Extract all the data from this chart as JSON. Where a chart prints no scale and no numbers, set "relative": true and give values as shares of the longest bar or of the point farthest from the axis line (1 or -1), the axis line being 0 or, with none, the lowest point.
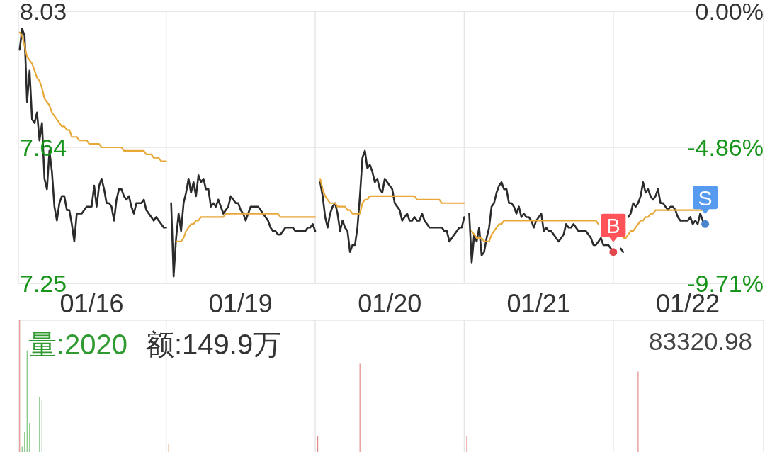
{
  "chart_data": [
    {
      "type": "line",
      "categories": [
        null,
        null,
        null,
        null,
        null,
        null,
        null,
        null,
        null,
        null,
        null,
        null,
        null,
        null,
        null,
        null,
        null,
        null,
        null,
        null,
        null,
        null,
        null,
        null,
        null,
        null,
        null,
        null,
        null,
        "01/16",
        null,
        null,
        null,
        null,
        null,
        null,
        null,
        null,
        null,
        null,
        null,
        null,
        null,
        null,
        null,
        null,
        null,
        null,
        null,
        null,
        null,
        null,
        null,
        null,
        null,
        null,
        null,
        null,
        null,
        null,
        null,
        null,
        null,
        null,
        null,
        null,
        null,
        null,
        null,
        null,
        null,
        null,
        null,
        null,
        null,
        null,
        null,
        null,
        null,
        null,
        null,
        null,
        null,
        null,
        null,
        null,
        null,
        null,
        null,
        "01/19",
        null,
        null,
        null,
        null,
        null,
        null,
        null,
        null,
        null,
        null,
        null,
        null,
        null,
        null,
        null,
        null,
        null,
        null,
        null,
        null,
        null,
        null,
        null,
        null,
        null,
        null,
        null,
        null,
        null,
        null,
        null,
        null,
        null,
        null,
        null,
        null,
        null,
        null,
        null,
        null,
        null,
        null,
        null,
        null,
        null,
        null,
        null,
        null,
        null,
        null,
        null,
        null,
        null,
        null,
        null,
        null,
        null,
        null,
        null,
        "01/20",
        null,
        null,
        null,
        null,
        null,
        null,
        null,
        null,
        null,
        null,
        null,
        null,
        null,
        null,
        null,
        null,
        null,
        null,
        null,
        null,
        null,
        null,
        null,
        null,
        null,
        null,
        null,
        null,
        null,
        null,
        null,
        null,
        null,
        null,
        null,
        null,
        null,
        null,
        null,
        null,
        null,
        null,
        null,
        null,
        null,
        null,
        null,
        null,
        null,
        null,
        null,
        null,
        null,
        null,
        null,
        null,
        null,
        null,
        null,
        "01/21",
        null,
        null,
        null,
        null,
        null,
        null,
        null,
        null,
        null,
        null,
        null,
        null,
        null,
        null,
        null,
        null,
        null,
        null,
        null,
        null,
        null,
        null,
        null,
        null,
        null,
        null,
        null,
        null,
        null,
        null,
        null,
        null,
        null,
        null,
        null,
        null,
        null,
        null,
        null,
        null,
        null,
        null,
        null,
        null,
        null,
        null,
        null,
        null,
        null,
        null,
        null,
        null,
        null,
        null,
        null,
        null,
        null,
        null,
        null,
        "01/22",
        null,
        null,
        null,
        null,
        null,
        null,
        null,
        null,
        null,
        null,
        null,
        null,
        null,
        null,
        null,
        null,
        null,
        null,
        null,
        null,
        null,
        null,
        null,
        null,
        null,
        null,
        null,
        null,
        null,
        null
      ],
      "series": [
        {
          "color": "#2b2b2b",
          "values": [
            7.92,
            7.98,
            7.96,
            7.77,
            7.86,
            7.72,
            7.71,
            7.74,
            7.66,
            7.71,
            7.55,
            7.52,
            7.63,
            7.57,
            7.47,
            7.43,
            7.48,
            7.5,
            7.5,
            7.46,
            7.46,
            7.42,
            7.37,
            7.45,
            7.45,
            7.45,
            7.46,
            7.47,
            7.47,
            7.47,
            7.53,
            7.47,
            7.53,
            7.55,
            7.52,
            7.48,
            7.48,
            7.47,
            7.43,
            7.49,
            7.52,
            7.52,
            7.5,
            7.49,
            7.5,
            7.47,
            7.45,
            7.48,
            7.48,
            7.48,
            7.49,
            7.46,
            7.45,
            7.44,
            7.43,
            7.44,
            7.43,
            7.42,
            7.41,
            7.41,
            null,
            7.48,
            7.27,
            7.38,
            7.45,
            7.4,
            7.48,
            7.51,
            7.55,
            7.51,
            7.54,
            7.5,
            7.56,
            7.54,
            7.55,
            7.52,
            7.52,
            7.47,
            7.48,
            7.47,
            7.49,
            7.47,
            7.45,
            7.46,
            7.47,
            7.5,
            7.49,
            7.48,
            7.48,
            7.46,
            7.45,
            7.43,
            7.45,
            7.47,
            7.47,
            7.47,
            7.47,
            7.46,
            7.45,
            7.44,
            7.43,
            7.41,
            7.4,
            7.4,
            7.39,
            7.39,
            7.4,
            7.41,
            7.41,
            7.41,
            7.41,
            7.4,
            7.4,
            7.4,
            7.4,
            7.4,
            7.41,
            7.41,
            7.42,
            7.4,
            null,
            7.54,
            7.5,
            7.44,
            7.41,
            7.45,
            7.47,
            7.48,
            7.45,
            7.4,
            7.43,
            7.41,
            7.4,
            7.34,
            7.36,
            7.36,
            7.41,
            7.5,
            7.61,
            7.63,
            7.58,
            7.59,
            7.57,
            7.54,
            7.55,
            7.52,
            7.51,
            7.55,
            7.54,
            7.53,
            7.52,
            7.48,
            7.47,
            7.46,
            7.43,
            7.44,
            7.45,
            7.43,
            7.43,
            7.44,
            7.43,
            7.43,
            7.45,
            7.43,
            7.42,
            7.41,
            7.41,
            7.41,
            7.41,
            7.41,
            7.41,
            7.4,
            7.4,
            7.37,
            7.38,
            7.39,
            7.4,
            7.41,
            7.41,
            7.44,
            null,
            7.45,
            7.31,
            7.39,
            7.37,
            7.41,
            7.33,
            7.34,
            7.38,
            7.41,
            7.47,
            7.48,
            7.51,
            7.53,
            7.54,
            7.52,
            7.52,
            7.48,
            7.48,
            7.47,
            7.45,
            7.47,
            7.44,
            7.45,
            7.44,
            7.44,
            7.43,
            7.41,
            7.43,
            7.44,
            7.45,
            7.4,
            7.41,
            7.4,
            7.4,
            7.39,
            7.38,
            7.37,
            7.38,
            7.39,
            7.42,
            7.41,
            7.41,
            7.42,
            7.41,
            7.4,
            7.4,
            7.4,
            7.4,
            7.39,
            7.38,
            7.36,
            7.36,
            7.37,
            7.38,
            7.36,
            7.36,
            7.36,
            7.35,
            7.34,
            null,
            null,
            7.35,
            7.34,
            null,
            7.44,
            7.45,
            7.48,
            7.47,
            7.48,
            7.5,
            7.54,
            7.51,
            7.52,
            7.5,
            7.49,
            7.5,
            7.52,
            7.48,
            7.48,
            7.47,
            7.46,
            7.47,
            7.47,
            7.46,
            7.44,
            7.43,
            7.43,
            7.43,
            7.43,
            7.44,
            7.42,
            7.43,
            7.42,
            7.45,
            7.43,
            7.42,
            null,
            null,
            null,
            null,
            null,
            null,
            null,
            null,
            null,
            null,
            null,
            null,
            null,
            null,
            null,
            null,
            null,
            null,
            null,
            null,
            null,
            null,
            null
          ]
        },
        {
          "color": "#e8a838",
          "values": [
            7.97,
            7.96,
            7.93,
            7.9,
            7.89,
            7.88,
            7.86,
            7.84,
            7.83,
            7.81,
            7.78,
            7.77,
            7.76,
            7.74,
            7.73,
            7.72,
            7.71,
            7.7,
            7.7,
            7.69,
            7.69,
            7.67,
            7.67,
            7.67,
            7.66,
            7.66,
            7.66,
            7.66,
            7.65,
            7.65,
            7.65,
            7.65,
            7.65,
            7.64,
            7.64,
            7.64,
            7.64,
            7.64,
            7.64,
            7.64,
            7.64,
            7.64,
            7.63,
            7.63,
            7.63,
            7.63,
            7.63,
            7.63,
            7.63,
            7.63,
            7.63,
            7.62,
            7.62,
            7.62,
            7.61,
            7.61,
            7.61,
            7.6,
            7.6,
            7.6,
            null,
            null,
            null,
            7.37,
            7.37,
            7.37,
            7.38,
            7.4,
            7.41,
            7.42,
            7.42,
            7.43,
            7.43,
            7.44,
            7.44,
            7.44,
            7.44,
            7.44,
            7.44,
            7.44,
            7.44,
            7.44,
            7.44,
            7.45,
            7.45,
            7.45,
            7.45,
            7.45,
            7.45,
            7.45,
            7.45,
            7.45,
            7.45,
            7.45,
            7.45,
            7.45,
            7.45,
            7.45,
            7.45,
            7.45,
            7.45,
            7.45,
            7.45,
            7.45,
            7.45,
            7.44,
            7.44,
            7.44,
            7.44,
            7.44,
            7.44,
            7.44,
            7.44,
            7.44,
            7.44,
            7.44,
            7.44,
            7.44,
            7.44,
            7.44,
            null,
            7.55,
            7.52,
            7.5,
            7.49,
            7.48,
            7.48,
            7.48,
            7.47,
            7.47,
            7.47,
            7.47,
            7.46,
            7.46,
            7.45,
            7.45,
            7.45,
            7.45,
            7.48,
            7.49,
            7.49,
            7.5,
            7.5,
            7.5,
            7.5,
            7.5,
            7.5,
            7.5,
            7.5,
            7.5,
            7.5,
            7.5,
            7.5,
            7.5,
            7.5,
            7.5,
            7.5,
            7.5,
            7.5,
            7.5,
            7.49,
            7.49,
            7.49,
            7.49,
            7.49,
            7.49,
            7.49,
            7.49,
            7.49,
            7.49,
            7.48,
            7.48,
            7.48,
            7.48,
            7.48,
            7.48,
            7.48,
            7.48,
            7.48,
            7.48,
            null,
            null,
            7.4,
            7.39,
            7.38,
            7.38,
            7.38,
            7.37,
            7.37,
            7.37,
            7.39,
            7.4,
            7.41,
            7.42,
            7.42,
            7.43,
            7.43,
            7.43,
            7.43,
            7.43,
            7.43,
            7.43,
            7.43,
            7.43,
            7.43,
            7.43,
            7.43,
            7.43,
            7.43,
            7.43,
            7.43,
            7.43,
            7.43,
            7.43,
            7.43,
            7.43,
            7.43,
            7.43,
            7.43,
            7.43,
            7.43,
            7.43,
            7.43,
            7.43,
            7.43,
            7.43,
            7.43,
            7.43,
            7.43,
            7.43,
            7.43,
            7.43,
            7.43,
            7.42,
            null,
            null,
            null,
            null,
            null,
            null,
            null,
            null,
            null,
            7.38,
            7.38,
            7.39,
            7.4,
            7.4,
            7.41,
            7.42,
            7.43,
            7.43,
            7.44,
            7.44,
            7.45,
            7.45,
            7.46,
            7.46,
            7.46,
            7.46,
            7.46,
            7.46,
            7.46,
            7.46,
            7.46,
            7.46,
            7.46,
            7.46,
            7.46,
            7.46,
            7.46,
            7.46,
            7.46,
            7.46,
            7.46,
            7.46,
            7.46,
            null,
            null,
            null,
            null,
            null,
            null,
            null,
            null,
            null,
            null,
            null,
            null,
            null,
            null,
            null,
            null,
            null,
            null,
            null,
            null,
            null,
            null,
            null
          ]
        },
        {
          "type": "scatter",
          "name": "B",
          "color": "#e0464c",
          "values": [
            null,
            null,
            null,
            null,
            null,
            null,
            null,
            null,
            null,
            null,
            null,
            null,
            null,
            null,
            null,
            null,
            null,
            null,
            null,
            null,
            null,
            null,
            null,
            null,
            null,
            null,
            null,
            null,
            null,
            null,
            null,
            null,
            null,
            null,
            null,
            null,
            null,
            null,
            null,
            null,
            null,
            null,
            null,
            null,
            null,
            null,
            null,
            null,
            null,
            null,
            null,
            null,
            null,
            null,
            null,
            null,
            null,
            null,
            null,
            null,
            null,
            null,
            null,
            null,
            null,
            null,
            null,
            null,
            null,
            null,
            null,
            null,
            null,
            null,
            null,
            null,
            null,
            null,
            null,
            null,
            null,
            null,
            null,
            null,
            null,
            null,
            null,
            null,
            null,
            null,
            null,
            null,
            null,
            null,
            null,
            null,
            null,
            null,
            null,
            null,
            null,
            null,
            null,
            null,
            null,
            null,
            null,
            null,
            null,
            null,
            null,
            null,
            null,
            null,
            null,
            null,
            null,
            null,
            null,
            null,
            null,
            null,
            null,
            null,
            null,
            null,
            null,
            null,
            null,
            null,
            null,
            null,
            null,
            null,
            null,
            null,
            null,
            null,
            null,
            null,
            null,
            null,
            null,
            null,
            null,
            null,
            null,
            null,
            null,
            null,
            null,
            null,
            null,
            null,
            null,
            null,
            null,
            null,
            null,
            null,
            null,
            null,
            null,
            null,
            null,
            null,
            null,
            null,
            null,
            null,
            null,
            null,
            null,
            null,
            null,
            null,
            null,
            null,
            null,
            null,
            null,
            null,
            null,
            null,
            null,
            null,
            null,
            null,
            null,
            null,
            null,
            null,
            null,
            null,
            null,
            null,
            null,
            null,
            null,
            null,
            null,
            null,
            null,
            null,
            null,
            null,
            null,
            null,
            null,
            null,
            null,
            null,
            null,
            null,
            null,
            null,
            null,
            null,
            null,
            null,
            null,
            null,
            null,
            null,
            null,
            null,
            null,
            null,
            null,
            null,
            null,
            null,
            null,
            null,
            null,
            null,
            null,
            null,
            null,
            7.34,
            null,
            null,
            null,
            null,
            null,
            null,
            null,
            null,
            null,
            null,
            null,
            null,
            null,
            null,
            null,
            null,
            null,
            null,
            null,
            null,
            null,
            null,
            null,
            null,
            null,
            null,
            null,
            null,
            null,
            null,
            null,
            null,
            null,
            null,
            null,
            null,
            null,
            null,
            null,
            null,
            null,
            null,
            null,
            null,
            null,
            null,
            null,
            null,
            null,
            null,
            null,
            null,
            null,
            null,
            null,
            null,
            null,
            null,
            null,
            null
          ]
        },
        {
          "type": "scatter",
          "name": "S",
          "color": "#4a84cc",
          "values": [
            null,
            null,
            null,
            null,
            null,
            null,
            null,
            null,
            null,
            null,
            null,
            null,
            null,
            null,
            null,
            null,
            null,
            null,
            null,
            null,
            null,
            null,
            null,
            null,
            null,
            null,
            null,
            null,
            null,
            null,
            null,
            null,
            null,
            null,
            null,
            null,
            null,
            null,
            null,
            null,
            null,
            null,
            null,
            null,
            null,
            null,
            null,
            null,
            null,
            null,
            null,
            null,
            null,
            null,
            null,
            null,
            null,
            null,
            null,
            null,
            null,
            null,
            null,
            null,
            null,
            null,
            null,
            null,
            null,
            null,
            null,
            null,
            null,
            null,
            null,
            null,
            null,
            null,
            null,
            null,
            null,
            null,
            null,
            null,
            null,
            null,
            null,
            null,
            null,
            null,
            null,
            null,
            null,
            null,
            null,
            null,
            null,
            null,
            null,
            null,
            null,
            null,
            null,
            null,
            null,
            null,
            null,
            null,
            null,
            null,
            null,
            null,
            null,
            null,
            null,
            null,
            null,
            null,
            null,
            null,
            null,
            null,
            null,
            null,
            null,
            null,
            null,
            null,
            null,
            null,
            null,
            null,
            null,
            null,
            null,
            null,
            null,
            null,
            null,
            null,
            null,
            null,
            null,
            null,
            null,
            null,
            null,
            null,
            null,
            null,
            null,
            null,
            null,
            null,
            null,
            null,
            null,
            null,
            null,
            null,
            null,
            null,
            null,
            null,
            null,
            null,
            null,
            null,
            null,
            null,
            null,
            null,
            null,
            null,
            null,
            null,
            null,
            null,
            null,
            null,
            null,
            null,
            null,
            null,
            null,
            null,
            null,
            null,
            null,
            null,
            null,
            null,
            null,
            null,
            null,
            null,
            null,
            null,
            null,
            null,
            null,
            null,
            null,
            null,
            null,
            null,
            null,
            null,
            null,
            null,
            null,
            null,
            null,
            null,
            null,
            null,
            null,
            null,
            null,
            null,
            null,
            null,
            null,
            null,
            null,
            null,
            null,
            null,
            null,
            null,
            null,
            null,
            null,
            null,
            null,
            null,
            null,
            null,
            null,
            null,
            null,
            null,
            null,
            null,
            null,
            null,
            null,
            null,
            null,
            null,
            null,
            null,
            null,
            null,
            null,
            null,
            null,
            null,
            null,
            null,
            null,
            null,
            null,
            null,
            null,
            null,
            null,
            null,
            null,
            null,
            null,
            null,
            null,
            null,
            null,
            null,
            7.42,
            null,
            null,
            null,
            null,
            null,
            null,
            null,
            null,
            null,
            null,
            null,
            null,
            null,
            null,
            null,
            null,
            null,
            null,
            null,
            null,
            null,
            null,
            null
          ]
        }
      ],
      "ylim": [
        7.25,
        8.03
      ],
      "yticks": [
        7.25,
        7.64,
        8.03
      ],
      "y2lim": [
        -9.71,
        0
      ],
      "y2ticks": [
        {
          "value": -9.71,
          "label": "-9.71%"
        },
        {
          "value": -4.86,
          "label": "-4.86%"
        },
        {
          "value": 0,
          "label": "0.00%"
        }
      ],
      "grid": true
    },
    {
      "type": "bar",
      "relative": true,
      "categories": [
        null,
        null,
        null,
        null,
        null,
        null,
        null,
        null,
        null,
        null,
        null,
        null,
        null,
        null,
        null,
        null,
        null,
        null,
        null,
        null,
        null,
        null,
        null,
        null,
        null,
        null,
        null,
        null,
        null,
        null,
        null,
        null,
        null,
        null,
        null,
        null,
        null,
        null,
        null,
        null,
        null,
        null,
        null,
        null,
        null,
        null,
        null,
        null,
        null,
        null,
        null,
        null,
        null,
        null,
        null,
        null,
        null,
        null,
        null,
        null,
        null,
        null,
        null,
        null,
        null,
        null,
        null,
        null,
        null,
        null,
        null,
        null,
        null,
        null,
        null,
        null,
        null,
        null,
        null,
        null,
        null,
        null,
        null,
        null,
        null,
        null,
        null,
        null,
        null,
        null,
        null,
        null,
        null,
        null,
        null,
        null,
        null,
        null,
        null,
        null,
        null,
        null,
        null,
        null,
        null,
        null,
        null,
        null,
        null,
        null,
        null,
        null,
        null,
        null,
        null,
        null,
        null,
        null,
        null,
        null,
        null,
        null,
        null,
        null,
        null,
        null,
        null,
        null,
        null,
        null,
        null,
        null,
        null,
        null,
        null,
        null,
        null,
        null,
        null,
        null,
        null,
        null,
        null,
        null,
        null,
        null,
        null,
        null,
        null,
        null,
        null,
        null,
        null,
        null,
        null,
        null,
        null,
        null,
        null,
        null,
        null,
        null,
        null,
        null,
        null,
        null,
        null,
        null,
        null,
        null,
        null,
        null,
        null,
        null,
        null,
        null,
        null,
        null,
        null,
        null,
        null,
        null,
        null,
        null,
        null,
        null,
        null,
        null,
        null,
        null,
        null,
        null,
        null,
        null,
        null,
        null,
        null,
        null,
        null,
        null,
        null,
        null,
        null,
        null,
        null,
        null,
        null,
        null,
        null,
        null,
        null,
        null,
        null,
        null,
        null,
        null,
        null,
        null,
        null,
        null,
        null,
        null,
        null,
        null,
        null,
        null,
        null,
        null,
        null,
        null,
        null,
        null,
        null,
        null,
        null,
        null,
        null,
        null,
        null,
        null,
        null,
        null,
        null,
        null,
        null,
        null,
        null,
        null,
        null,
        null,
        null,
        null,
        null,
        null,
        null,
        null,
        null,
        null,
        null,
        null,
        null,
        null,
        null,
        null,
        null,
        null,
        null,
        null,
        null,
        null,
        null,
        null,
        null,
        null,
        null,
        null,
        null,
        null,
        null,
        null,
        null,
        null,
        null,
        null,
        null,
        null,
        null,
        null,
        null,
        null,
        null,
        null,
        null,
        null,
        null,
        null,
        null,
        null,
        null,
        null
      ],
      "values": [
        1,
        0.04,
        0.15,
        0.77,
        0.22,
        null,
        null,
        null,
        0.42,
        0.4,
        null,
        null,
        null,
        null,
        null,
        null,
        null,
        null,
        null,
        null,
        null,
        null,
        null,
        null,
        null,
        null,
        null,
        null,
        null,
        null,
        null,
        null,
        null,
        null,
        null,
        null,
        null,
        null,
        null,
        null,
        null,
        null,
        null,
        null,
        null,
        null,
        null,
        null,
        null,
        null,
        null,
        null,
        null,
        null,
        null,
        null,
        null,
        null,
        null,
        null,
        0.06,
        null,
        null,
        null,
        null,
        null,
        null,
        null,
        null,
        null,
        null,
        null,
        null,
        null,
        null,
        null,
        null,
        null,
        null,
        null,
        null,
        null,
        null,
        null,
        null,
        null,
        null,
        null,
        null,
        null,
        null,
        null,
        null,
        null,
        null,
        null,
        null,
        null,
        null,
        null,
        null,
        null,
        null,
        null,
        null,
        null,
        null,
        null,
        null,
        null,
        null,
        null,
        null,
        null,
        null,
        null,
        null,
        null,
        null,
        null,
        0.12,
        null,
        null,
        null,
        null,
        null,
        null,
        null,
        null,
        null,
        null,
        null,
        null,
        null,
        null,
        null,
        null,
        0.67,
        null,
        null,
        null,
        null,
        null,
        null,
        null,
        null,
        null,
        null,
        null,
        null,
        null,
        null,
        null,
        null,
        null,
        null,
        null,
        null,
        null,
        null,
        null,
        null,
        null,
        null,
        null,
        null,
        null,
        null,
        null,
        null,
        null,
        null,
        null,
        null,
        null,
        null,
        null,
        null,
        null,
        null,
        0.12,
        null,
        null,
        null,
        null,
        null,
        null,
        null,
        null,
        null,
        null,
        null,
        null,
        null,
        null,
        null,
        null,
        null,
        null,
        null,
        null,
        null,
        null,
        null,
        null,
        null,
        null,
        null,
        null,
        null,
        null,
        null,
        null,
        null,
        null,
        null,
        null,
        null,
        null,
        null,
        null,
        null,
        null,
        null,
        null,
        null,
        null,
        null,
        null,
        null,
        null,
        null,
        null,
        null,
        null,
        null,
        null,
        null,
        null,
        null,
        null,
        null,
        null,
        null,
        null,
        null,
        null,
        null,
        null,
        0.61,
        null,
        null,
        null,
        null,
        null,
        null,
        null,
        null,
        null,
        null,
        null,
        null,
        null,
        null,
        null,
        null,
        null,
        null,
        null,
        null,
        null,
        null,
        null,
        null,
        null,
        null,
        null,
        null,
        null,
        null,
        null,
        null,
        null,
        null,
        null,
        null,
        null,
        null,
        null,
        null,
        null,
        null,
        null,
        null,
        null,
        null,
        null,
        null,
        null,
        null
      ],
      "colors": [
        "#e58a8a",
        "#7cc47c",
        "#7cc47c",
        "#7cc47c",
        "#7cc47c",
        null,
        null,
        null,
        "#7cc47c",
        "#7cc47c",
        null,
        null,
        null,
        null,
        null,
        null,
        null,
        null,
        null,
        null,
        null,
        null,
        null,
        null,
        null,
        null,
        null,
        null,
        null,
        null,
        null,
        null,
        null,
        null,
        null,
        null,
        null,
        null,
        null,
        null,
        null,
        null,
        null,
        null,
        null,
        null,
        null,
        null,
        null,
        null,
        null,
        null,
        null,
        null,
        null,
        null,
        null,
        null,
        null,
        null,
        "#c9a27e",
        null,
        null,
        null,
        null,
        null,
        null,
        null,
        null,
        null,
        null,
        null,
        null,
        null,
        null,
        null,
        null,
        null,
        null,
        null,
        null,
        null,
        null,
        null,
        null,
        null,
        null,
        null,
        null,
        null,
        null,
        null,
        null,
        null,
        null,
        null,
        null,
        null,
        null,
        null,
        null,
        null,
        null,
        null,
        null,
        null,
        null,
        null,
        null,
        null,
        null,
        null,
        null,
        null,
        null,
        null,
        null,
        null,
        null,
        null,
        "#e58a8a",
        null,
        null,
        null,
        null,
        null,
        null,
        null,
        null,
        null,
        null,
        null,
        null,
        null,
        null,
        null,
        null,
        "#e58a8a",
        null,
        null,
        null,
        null,
        null,
        null,
        null,
        null,
        null,
        null,
        null,
        null,
        null,
        null,
        null,
        null,
        null,
        null,
        null,
        null,
        null,
        null,
        null,
        null,
        null,
        null,
        null,
        null,
        null,
        null,
        null,
        null,
        null,
        null,
        null,
        null,
        null,
        null,
        null,
        null,
        null,
        null,
        "#e58a8a",
        null,
        null,
        null,
        null,
        null,
        null,
        null,
        null,
        null,
        null,
        null,
        null,
        null,
        null,
        null,
        null,
        null,
        null,
        null,
        null,
        null,
        null,
        null,
        null,
        null,
        null,
        null,
        null,
        null,
        null,
        null,
        null,
        null,
        null,
        null,
        null,
        null,
        null,
        null,
        null,
        null,
        null,
        null,
        null,
        null,
        null,
        null,
        null,
        null,
        null,
        null,
        null,
        null,
        null,
        null,
        null,
        null,
        null,
        null,
        null,
        null,
        null,
        null,
        null,
        null,
        null,
        null,
        null,
        "#e58a8a",
        null,
        null,
        null,
        null,
        null,
        null,
        null,
        null,
        null,
        null,
        null,
        null,
        null,
        null,
        null,
        null,
        null,
        null,
        null,
        null,
        null,
        null,
        null,
        null,
        null,
        null,
        null,
        null,
        null,
        null,
        null,
        null,
        null,
        null,
        null,
        null,
        null,
        null,
        null,
        null,
        null,
        null,
        null,
        null,
        null,
        null,
        null,
        null,
        null,
        null
      ],
      "annotations": [
        "量:2020",
        "额:149.9万",
        "83320.98"
      ]
    }
  ]
}
